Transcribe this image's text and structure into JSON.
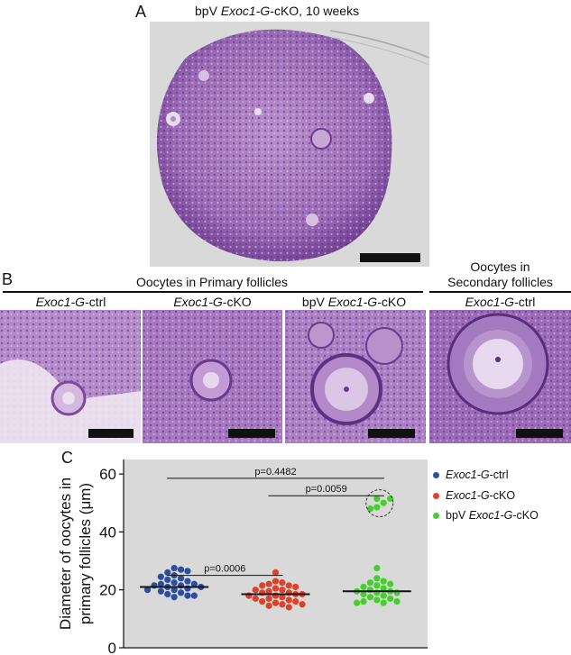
{
  "panel_a": {
    "letter": "A",
    "title_prefix": "bpV ",
    "title_italic": "Exoc1-G",
    "title_suffix": "-cKO, 10 weeks"
  },
  "panel_b": {
    "letter": "B",
    "primary_heading": "Oocytes in Primary follicles",
    "secondary_heading_line1": "Oocytes in",
    "secondary_heading_line2": "Secondary follicles",
    "images": [
      {
        "prefix": "",
        "italic": "Exoc1-G",
        "suffix": "-ctrl"
      },
      {
        "prefix": "",
        "italic": "Exoc1-G",
        "suffix": "-cKO"
      },
      {
        "prefix": "bpV ",
        "italic": "Exoc1-G",
        "suffix": "-cKO"
      },
      {
        "prefix": "",
        "italic": "Exoc1-G",
        "suffix": "-ctrl"
      }
    ]
  },
  "panel_c": {
    "letter": "C"
  },
  "colors": {
    "tissue_dark": "#6b3a8f",
    "tissue_light": "#c9a8d8",
    "background_gray": "#d8d8d8",
    "ctrl": "#2b4ea0",
    "cko": "#e0402a",
    "bpv": "#44d02c"
  },
  "chart_data": {
    "type": "scatter",
    "ylabel": "Diameter of oocytes in primary follicles (μm)",
    "ylim": [
      0,
      65
    ],
    "yticks": [
      0,
      20,
      40,
      60
    ],
    "grid": false,
    "legend_position": "right",
    "series": [
      {
        "name": "Exoc1-G-ctrl",
        "name_italic": "Exoc1-G",
        "name_suffix": "-ctrl",
        "name_prefix": "",
        "color": "#2b4ea0",
        "median": 21,
        "values": [
          27.5,
          27,
          26,
          26.5,
          25,
          24,
          24.5,
          23.5,
          23,
          22.5,
          22,
          22,
          21.5,
          21.5,
          21,
          21,
          20.5,
          20,
          20,
          19.5,
          19,
          18.5,
          18,
          18,
          17.5
        ]
      },
      {
        "name": "Exoc1-G-cKO",
        "name_italic": "Exoc1-G",
        "name_suffix": "-cKO",
        "name_prefix": "",
        "color": "#e0402a",
        "median": 18.5,
        "values": [
          26,
          23,
          22.5,
          22,
          21.5,
          21.5,
          21,
          20.5,
          20,
          20,
          19.5,
          19,
          19,
          18.5,
          18.5,
          18,
          18,
          17.5,
          17,
          17,
          16.5,
          16,
          16,
          15.5,
          15,
          15,
          14.5,
          14
        ]
      },
      {
        "name": "bpV Exoc1-G-cKO",
        "name_italic": "Exoc1-G",
        "name_suffix": "-cKO",
        "name_prefix": "bpV ",
        "color": "#44d02c",
        "median": 19.5,
        "values": [
          51.5,
          51.5,
          50,
          48.5,
          48,
          27.5,
          24,
          23,
          22.5,
          22,
          21.5,
          21,
          20.5,
          20,
          19.5,
          19.5,
          19,
          19,
          18.5,
          18,
          17.5,
          17,
          16.5,
          16,
          16,
          15.5,
          15.5
        ]
      }
    ],
    "outlier_circle_group": "bpV Exoc1-G-cKO",
    "annotations": [
      {
        "label": "p=0.4482",
        "from": 0,
        "to": 2,
        "y": 58.5
      },
      {
        "label": "p=0.0059",
        "from": 1,
        "to": 2,
        "y": 52.5
      },
      {
        "label": "p=0.0006",
        "from": 0,
        "to": 1,
        "y": 25
      }
    ]
  }
}
